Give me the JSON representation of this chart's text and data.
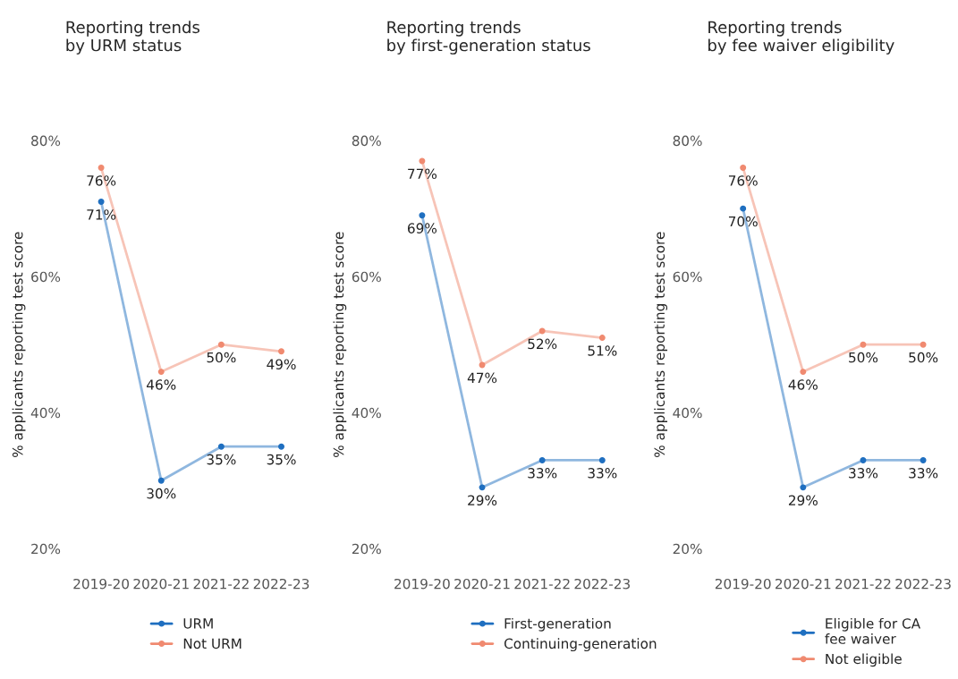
{
  "chart_data": [
    {
      "type": "line",
      "title": "Reporting trends\nby URM status",
      "ylabel": "% applicants reporting test score",
      "categories": [
        "2019-20",
        "2020-21",
        "2021-22",
        "2022-23"
      ],
      "ylim": [
        20,
        80
      ],
      "yticks": [
        {
          "value": 20,
          "label": "20%"
        },
        {
          "value": 40,
          "label": "40%"
        },
        {
          "value": 60,
          "label": "60%"
        },
        {
          "value": 80,
          "label": "80%"
        }
      ],
      "marker": "circle",
      "grid": false,
      "legend": "bottom",
      "series": [
        {
          "name": "URM",
          "color": "#1f6fc0",
          "values": [
            71,
            30,
            35,
            35
          ],
          "value_labels": [
            "71%",
            "30%",
            "35%",
            "35%"
          ]
        },
        {
          "name": "Not URM",
          "color": "#f08a70",
          "values": [
            76,
            46,
            50,
            49
          ],
          "value_labels": [
            "76%",
            "46%",
            "50%",
            "49%"
          ]
        }
      ]
    },
    {
      "type": "line",
      "title": "Reporting trends\nby first-generation status",
      "ylabel": "% applicants reporting test score",
      "categories": [
        "2019-20",
        "2020-21",
        "2021-22",
        "2022-23"
      ],
      "ylim": [
        20,
        80
      ],
      "yticks": [
        {
          "value": 20,
          "label": "20%"
        },
        {
          "value": 40,
          "label": "40%"
        },
        {
          "value": 60,
          "label": "60%"
        },
        {
          "value": 80,
          "label": "80%"
        }
      ],
      "marker": "circle",
      "grid": false,
      "legend": "bottom",
      "series": [
        {
          "name": "First-generation",
          "color": "#1f6fc0",
          "values": [
            69,
            29,
            33,
            33
          ],
          "value_labels": [
            "69%",
            "29%",
            "33%",
            "33%"
          ]
        },
        {
          "name": "Continuing-generation",
          "color": "#f08a70",
          "values": [
            77,
            47,
            52,
            51
          ],
          "value_labels": [
            "77%",
            "47%",
            "52%",
            "51%"
          ]
        }
      ]
    },
    {
      "type": "line",
      "title": "Reporting trends\nby fee waiver eligibility",
      "ylabel": "% applicants reporting test score",
      "categories": [
        "2019-20",
        "2020-21",
        "2021-22",
        "2022-23"
      ],
      "ylim": [
        20,
        80
      ],
      "yticks": [
        {
          "value": 20,
          "label": "20%"
        },
        {
          "value": 40,
          "label": "40%"
        },
        {
          "value": 60,
          "label": "60%"
        },
        {
          "value": 80,
          "label": "80%"
        }
      ],
      "marker": "circle",
      "grid": false,
      "legend": "bottom",
      "series": [
        {
          "name": "Eligible for CA\nfee waiver",
          "color": "#1f6fc0",
          "values": [
            70,
            29,
            33,
            33
          ],
          "value_labels": [
            "70%",
            "29%",
            "33%",
            "33%"
          ]
        },
        {
          "name": "Not eligible",
          "color": "#f08a70",
          "values": [
            76,
            46,
            50,
            50
          ],
          "value_labels": [
            "76%",
            "46%",
            "50%",
            "50%"
          ]
        }
      ]
    }
  ]
}
